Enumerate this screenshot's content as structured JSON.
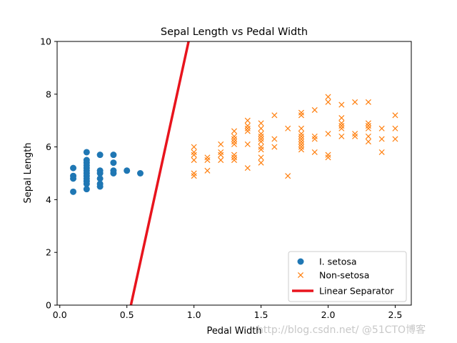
{
  "chart_data": {
    "type": "scatter",
    "title": "Sepal Length vs Pedal Width",
    "xlabel": "Pedal Width",
    "ylabel": "Sepal Length",
    "xlim": [
      -0.02,
      2.62
    ],
    "ylim": [
      0,
      10
    ],
    "xticks": [
      0.0,
      0.5,
      1.0,
      1.5,
      2.0,
      2.5
    ],
    "xtick_labels": [
      "0.0",
      "0.5",
      "1.0",
      "1.5",
      "2.0",
      "2.5"
    ],
    "yticks": [
      0,
      2,
      4,
      6,
      8,
      10
    ],
    "ytick_labels": [
      "0",
      "2",
      "4",
      "6",
      "8",
      "10"
    ],
    "grid": false,
    "legend_position": "lower-right",
    "series": [
      {
        "name": "I. setosa",
        "marker": "circle",
        "color": "#1f77b4",
        "points": [
          [
            0.1,
            4.3
          ],
          [
            0.1,
            4.8
          ],
          [
            0.1,
            4.9
          ],
          [
            0.1,
            5.2
          ],
          [
            0.2,
            4.4
          ],
          [
            0.2,
            4.6
          ],
          [
            0.2,
            4.7
          ],
          [
            0.2,
            4.8
          ],
          [
            0.2,
            4.9
          ],
          [
            0.2,
            5.0
          ],
          [
            0.2,
            5.1
          ],
          [
            0.2,
            5.2
          ],
          [
            0.2,
            5.3
          ],
          [
            0.2,
            5.4
          ],
          [
            0.2,
            5.5
          ],
          [
            0.2,
            5.8
          ],
          [
            0.3,
            4.5
          ],
          [
            0.3,
            4.6
          ],
          [
            0.3,
            4.8
          ],
          [
            0.3,
            5.0
          ],
          [
            0.3,
            5.1
          ],
          [
            0.3,
            5.7
          ],
          [
            0.4,
            5.0
          ],
          [
            0.4,
            5.1
          ],
          [
            0.4,
            5.4
          ],
          [
            0.4,
            5.7
          ],
          [
            0.5,
            5.1
          ],
          [
            0.6,
            5.0
          ]
        ]
      },
      {
        "name": "Non-setosa",
        "marker": "x",
        "color": "#ff7f0e",
        "points": [
          [
            1.0,
            4.9
          ],
          [
            1.0,
            5.0
          ],
          [
            1.0,
            5.5
          ],
          [
            1.0,
            5.7
          ],
          [
            1.0,
            5.8
          ],
          [
            1.0,
            6.0
          ],
          [
            1.1,
            5.1
          ],
          [
            1.1,
            5.5
          ],
          [
            1.1,
            5.6
          ],
          [
            1.2,
            5.5
          ],
          [
            1.2,
            5.7
          ],
          [
            1.2,
            5.8
          ],
          [
            1.2,
            6.1
          ],
          [
            1.3,
            5.5
          ],
          [
            1.3,
            5.6
          ],
          [
            1.3,
            5.7
          ],
          [
            1.3,
            6.1
          ],
          [
            1.3,
            6.2
          ],
          [
            1.3,
            6.3
          ],
          [
            1.3,
            6.4
          ],
          [
            1.3,
            6.6
          ],
          [
            1.4,
            5.2
          ],
          [
            1.4,
            6.1
          ],
          [
            1.4,
            6.6
          ],
          [
            1.4,
            6.7
          ],
          [
            1.4,
            6.8
          ],
          [
            1.4,
            7.0
          ],
          [
            1.5,
            5.4
          ],
          [
            1.5,
            5.6
          ],
          [
            1.5,
            5.9
          ],
          [
            1.5,
            6.0
          ],
          [
            1.5,
            6.2
          ],
          [
            1.5,
            6.3
          ],
          [
            1.5,
            6.4
          ],
          [
            1.5,
            6.5
          ],
          [
            1.5,
            6.7
          ],
          [
            1.5,
            6.9
          ],
          [
            1.6,
            6.0
          ],
          [
            1.6,
            6.3
          ],
          [
            1.6,
            7.2
          ],
          [
            1.7,
            4.9
          ],
          [
            1.7,
            6.7
          ],
          [
            1.8,
            5.9
          ],
          [
            1.8,
            6.0
          ],
          [
            1.8,
            6.1
          ],
          [
            1.8,
            6.2
          ],
          [
            1.8,
            6.3
          ],
          [
            1.8,
            6.4
          ],
          [
            1.8,
            6.5
          ],
          [
            1.8,
            6.7
          ],
          [
            1.8,
            7.2
          ],
          [
            1.8,
            7.3
          ],
          [
            1.9,
            5.8
          ],
          [
            1.9,
            6.3
          ],
          [
            1.9,
            6.4
          ],
          [
            1.9,
            7.4
          ],
          [
            2.0,
            5.6
          ],
          [
            2.0,
            5.7
          ],
          [
            2.0,
            6.5
          ],
          [
            2.0,
            7.7
          ],
          [
            2.0,
            7.9
          ],
          [
            2.1,
            6.4
          ],
          [
            2.1,
            6.7
          ],
          [
            2.1,
            6.8
          ],
          [
            2.1,
            6.9
          ],
          [
            2.1,
            7.1
          ],
          [
            2.1,
            7.6
          ],
          [
            2.2,
            6.4
          ],
          [
            2.2,
            6.5
          ],
          [
            2.2,
            7.7
          ],
          [
            2.3,
            6.2
          ],
          [
            2.3,
            6.4
          ],
          [
            2.3,
            6.7
          ],
          [
            2.3,
            6.8
          ],
          [
            2.3,
            6.9
          ],
          [
            2.3,
            7.7
          ],
          [
            2.4,
            5.8
          ],
          [
            2.4,
            6.3
          ],
          [
            2.4,
            6.7
          ],
          [
            2.5,
            6.3
          ],
          [
            2.5,
            6.7
          ],
          [
            2.5,
            7.2
          ]
        ]
      },
      {
        "name": "Linear Separator",
        "marker": "line",
        "color": "#e8141d",
        "points": [
          [
            0.53,
            0.0
          ],
          [
            0.96,
            10.0
          ]
        ]
      }
    ]
  },
  "watermark": "http://blog.csdn.net/ @51CTO博客"
}
